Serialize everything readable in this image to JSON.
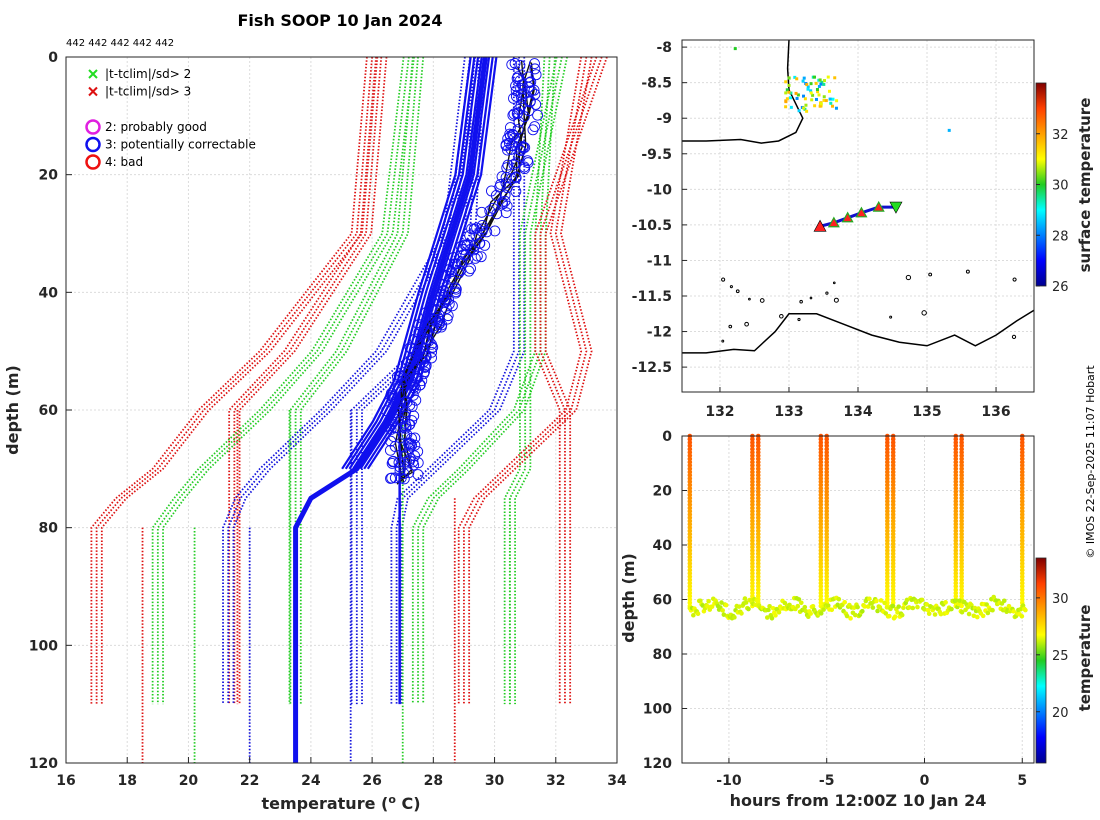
{
  "chart_data": [
    {
      "type": "line",
      "title": "Fish SOOP 10 Jan 2024",
      "subtitle": "442 442 442 442 442",
      "xlabel": "temperature (",
      "xlabel_sup": "o",
      "xlabel_tail": " C)",
      "ylabel": "depth (m)",
      "xlim": [
        16,
        34
      ],
      "ylim": [
        120,
        0
      ],
      "xticks": [
        16,
        18,
        20,
        22,
        24,
        26,
        28,
        30,
        32,
        34
      ],
      "yticks": [
        0,
        20,
        40,
        60,
        80,
        100,
        120
      ],
      "legend": [
        {
          "marker": "x",
          "color": "#22dd22",
          "label": "|t-tclim|/sd> 2"
        },
        {
          "marker": "x",
          "color": "#dd1111",
          "label": "|t-tclim|/sd> 3"
        },
        {
          "marker": "o",
          "color": "#e020e0",
          "label": "2: probably good"
        },
        {
          "marker": "o",
          "color": "#1010ee",
          "label": "3: potentially correctable"
        },
        {
          "marker": "o",
          "color": "#ee1111",
          "label": "4: bad"
        }
      ],
      "climatology_depths": [
        0,
        30,
        50,
        60,
        70,
        75,
        80,
        110
      ],
      "climatology_bands": [
        {
          "color": "#dd1111",
          "values": [
            26.0,
            25.5,
            22.5,
            20.5,
            19.0,
            17.8,
            17.0,
            17.0
          ]
        },
        {
          "color": "#dd1111",
          "values": [
            26.3,
            25.8,
            23.3,
            21.5,
            21.5,
            21.5,
            21.5,
            21.5
          ]
        },
        {
          "color": "#22cc22",
          "values": [
            27.2,
            26.5,
            24.2,
            22.5,
            20.5,
            19.7,
            19.0,
            19.0
          ]
        },
        {
          "color": "#22cc22",
          "values": [
            27.5,
            27.0,
            25.0,
            23.5,
            23.5,
            23.5,
            23.5,
            23.5
          ]
        },
        {
          "color": "#1010dd",
          "values": [
            29.2,
            28.5,
            26.3,
            24.5,
            22.5,
            21.7,
            21.3,
            21.3
          ]
        },
        {
          "color": "#1010dd",
          "values": [
            29.5,
            29.2,
            27.5,
            25.5,
            25.5,
            25.5,
            25.5,
            25.5
          ]
        },
        {
          "color": "#1010dd",
          "values": [
            30.8,
            30.8,
            30.8,
            30.0,
            28.0,
            27.0,
            26.8,
            26.8
          ]
        },
        {
          "color": "#22cc22",
          "values": [
            31.8,
            31.5,
            31.5,
            30.8,
            29.0,
            28.0,
            27.5,
            27.5
          ]
        },
        {
          "color": "#22cc22",
          "values": [
            32.2,
            31.0,
            31.0,
            31.0,
            31.0,
            30.5,
            30.5,
            30.5
          ]
        },
        {
          "color": "#dd1111",
          "values": [
            33.0,
            32.0,
            33.0,
            32.5,
            30.5,
            29.5,
            29.0,
            29.0
          ]
        },
        {
          "color": "#dd1111",
          "values": [
            33.5,
            31.5,
            31.5,
            32.3,
            32.3,
            32.3,
            32.3,
            32.3
          ]
        }
      ],
      "verticals": [
        {
          "color": "#1010dd",
          "x": 26.9,
          "top": 62,
          "bottom": 110
        },
        {
          "color": "#22cc22",
          "x": 27.0,
          "top": 62,
          "bottom": 120
        },
        {
          "color": "#1010dd",
          "x": 25.3,
          "top": 60,
          "bottom": 120
        },
        {
          "color": "#22cc22",
          "x": 23.3,
          "top": 60,
          "bottom": 110
        },
        {
          "color": "#dd1111",
          "x": 21.6,
          "top": 60,
          "bottom": 110
        },
        {
          "color": "#dd1111",
          "x": 28.7,
          "top": 75,
          "bottom": 120
        },
        {
          "color": "#22cc22",
          "x": 30.5,
          "top": 75,
          "bottom": 110
        },
        {
          "color": "#dd1111",
          "x": 18.5,
          "top": 80,
          "bottom": 120
        },
        {
          "color": "#22cc22",
          "x": 20.2,
          "top": 80,
          "bottom": 120
        },
        {
          "color": "#1010dd",
          "x": 22.0,
          "top": 80,
          "bottom": 120
        }
      ],
      "mean_profile": {
        "color": "#1010ee",
        "depth": [
          0,
          20,
          40,
          55,
          62,
          70,
          75,
          80,
          120
        ],
        "temp": [
          29.7,
          29.2,
          28.0,
          27.2,
          26.5,
          25.5,
          24.0,
          23.5,
          23.5
        ]
      },
      "observed_profile": {
        "color": "#111111",
        "depth": [
          1,
          5,
          10,
          15,
          20,
          25,
          30,
          35,
          40,
          45,
          50,
          55,
          60,
          65,
          70,
          72
        ],
        "temp": [
          31.0,
          31.1,
          31.0,
          30.8,
          30.6,
          30.1,
          29.6,
          29.0,
          28.4,
          28.0,
          27.6,
          27.2,
          26.9,
          27.0,
          27.1,
          27.0
        ]
      }
    },
    {
      "type": "scatter",
      "xlim": [
        131.45,
        136.55
      ],
      "ylim": [
        -12.85,
        -7.9
      ],
      "xticks": [
        132,
        133,
        134,
        135,
        136
      ],
      "yticks": [
        -8,
        -8.5,
        -9,
        -9.5,
        -10,
        -10.5,
        -11,
        -11.5,
        -12,
        -12.5
      ],
      "colorbar_label": "surface temperature",
      "colorbar_range": [
        26,
        34
      ],
      "colorbar_ticks": [
        26,
        28,
        30,
        32
      ],
      "track": {
        "lon": [
          133.45,
          133.65,
          133.85,
          134.05,
          134.3,
          134.55
        ],
        "lat": [
          -10.52,
          -10.47,
          -10.4,
          -10.33,
          -10.25,
          -10.25
        ]
      },
      "coast_west": {
        "lon": [
          131.45,
          131.8,
          132.3,
          132.6,
          132.85,
          133.1,
          133.2,
          133.0,
          132.98,
          133.0
        ],
        "lat": [
          -9.32,
          -9.32,
          -9.3,
          -9.35,
          -9.32,
          -9.2,
          -9.0,
          -8.6,
          -8.3,
          -7.9
        ]
      },
      "coast_south": {
        "lon": [
          131.45,
          131.8,
          132.2,
          132.5,
          132.8,
          133.0,
          133.4,
          133.8,
          134.2,
          134.6,
          135.0,
          135.4,
          135.7,
          136.0,
          136.3,
          136.55
        ],
        "lat": [
          -12.3,
          -12.3,
          -12.25,
          -12.27,
          -12.0,
          -11.75,
          -11.75,
          -11.9,
          -12.05,
          -12.15,
          -12.2,
          -12.05,
          -12.2,
          -12.05,
          -11.85,
          -11.7
        ]
      }
    },
    {
      "type": "scatter",
      "xlabel": "hours from 12:00Z 10 Jan 24",
      "ylabel": "depth (m)",
      "xlim": [
        -12.4,
        5.6
      ],
      "ylim": [
        120,
        0
      ],
      "xticks": [
        -10,
        -5,
        0,
        5
      ],
      "yticks": [
        0,
        20,
        40,
        60,
        80,
        100,
        120
      ],
      "colorbar_label": "temperature",
      "colorbar_range": [
        15.5,
        33.5
      ],
      "colorbar_ticks": [
        20,
        25,
        30
      ],
      "cast_times": [
        -12.0,
        -8.8,
        -8.5,
        -5.3,
        -5.0,
        -1.9,
        -1.6,
        1.6,
        1.9,
        5.0
      ],
      "mean_baseline_depth": 63
    }
  ],
  "copyright": "© IMOS 22-Sep-2025 11:07 Hobart"
}
